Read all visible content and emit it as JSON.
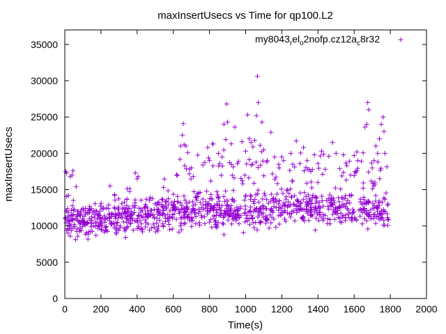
{
  "chart_data": {
    "type": "scatter",
    "title": "maxInsertUsecs vs Time for qp100.L2",
    "xlabel": "Time(s)",
    "ylabel": "maxInsertUsecs",
    "xlim": [
      0,
      2000
    ],
    "ylim": [
      0,
      37000
    ],
    "x_ticks": [
      0,
      200,
      400,
      600,
      800,
      1000,
      1200,
      1400,
      1600,
      1800,
      2000
    ],
    "y_ticks": [
      0,
      5000,
      10000,
      15000,
      20000,
      25000,
      30000,
      35000
    ],
    "grid": false,
    "legend_position": "top-right",
    "marker": "+",
    "series": [
      {
        "name": "my8043_rel_o2nofp.cz12a_c8r32",
        "color": "#9400d3",
        "outliers": [
          [
            5,
            17500
          ],
          [
            10,
            17300
          ],
          [
            20,
            14200
          ],
          [
            30,
            16800
          ],
          [
            40,
            17000
          ],
          [
            45,
            17600
          ],
          [
            250,
            15500
          ],
          [
            390,
            17300
          ],
          [
            400,
            16500
          ],
          [
            405,
            16800
          ],
          [
            640,
            21000
          ],
          [
            650,
            22500
          ],
          [
            655,
            24100
          ],
          [
            660,
            21200
          ],
          [
            670,
            21000
          ],
          [
            680,
            20100
          ],
          [
            690,
            17800
          ],
          [
            700,
            18000
          ],
          [
            790,
            20800
          ],
          [
            800,
            19000
          ],
          [
            820,
            21300
          ],
          [
            850,
            20000
          ],
          [
            870,
            19500
          ],
          [
            880,
            24000
          ],
          [
            890,
            21900
          ],
          [
            895,
            26800
          ],
          [
            900,
            24300
          ],
          [
            920,
            21300
          ],
          [
            940,
            23600
          ],
          [
            960,
            18900
          ],
          [
            980,
            21600
          ],
          [
            1000,
            20300
          ],
          [
            1010,
            25300
          ],
          [
            1020,
            22000
          ],
          [
            1030,
            21500
          ],
          [
            1040,
            20900
          ],
          [
            1050,
            21800
          ],
          [
            1060,
            25200
          ],
          [
            1065,
            30600
          ],
          [
            1070,
            27000
          ],
          [
            1080,
            21100
          ],
          [
            1090,
            24300
          ],
          [
            1100,
            20500
          ],
          [
            1120,
            19000
          ],
          [
            1140,
            22900
          ],
          [
            1160,
            19500
          ],
          [
            1200,
            19500
          ],
          [
            1210,
            19000
          ],
          [
            1250,
            20000
          ],
          [
            1260,
            18500
          ],
          [
            1280,
            21700
          ],
          [
            1300,
            18600
          ],
          [
            1320,
            20800
          ],
          [
            1340,
            19000
          ],
          [
            1360,
            17500
          ],
          [
            1380,
            19800
          ],
          [
            1400,
            18600
          ],
          [
            1420,
            20300
          ],
          [
            1440,
            17800
          ],
          [
            1460,
            19600
          ],
          [
            1480,
            21500
          ],
          [
            1500,
            20000
          ],
          [
            1520,
            17900
          ],
          [
            1540,
            19800
          ],
          [
            1560,
            18300
          ],
          [
            1580,
            17000
          ],
          [
            1600,
            19700
          ],
          [
            1620,
            19000
          ],
          [
            1640,
            18900
          ],
          [
            1660,
            23600
          ],
          [
            1670,
            24000
          ],
          [
            1675,
            27000
          ],
          [
            1680,
            26000
          ],
          [
            1700,
            18000
          ],
          [
            1710,
            19000
          ],
          [
            1720,
            21000
          ],
          [
            1730,
            20000
          ],
          [
            1740,
            22000
          ],
          [
            1750,
            24000
          ],
          [
            1760,
            25000
          ],
          [
            1765,
            23000
          ],
          [
            1770,
            20000
          ],
          [
            880,
            8800
          ],
          [
            60,
            8100
          ],
          [
            30,
            8600
          ]
        ],
        "bulk_trend": [
          [
            0,
            11200
          ],
          [
            100,
            10500
          ],
          [
            200,
            10900
          ],
          [
            300,
            11300
          ],
          [
            400,
            11400
          ],
          [
            500,
            11500
          ],
          [
            600,
            11800
          ],
          [
            700,
            12100
          ],
          [
            800,
            12300
          ],
          [
            900,
            12200
          ],
          [
            1000,
            11800
          ],
          [
            1100,
            12000
          ],
          [
            1200,
            12300
          ],
          [
            1300,
            12600
          ],
          [
            1400,
            12500
          ],
          [
            1500,
            12400
          ],
          [
            1600,
            12300
          ],
          [
            1700,
            12100
          ],
          [
            1800,
            12000
          ]
        ]
      }
    ]
  }
}
